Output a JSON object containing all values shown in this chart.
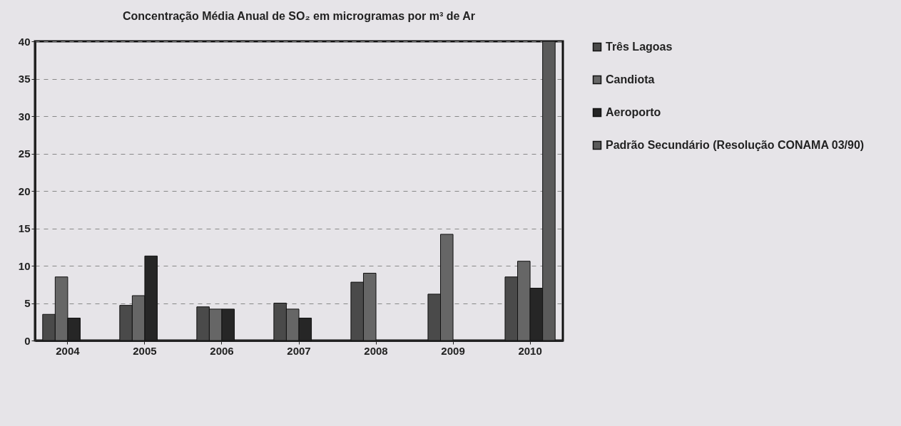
{
  "chart_data": {
    "type": "bar",
    "title": "Concentração Média Anual de SO₂ em microgramas por m³ de Ar",
    "categories": [
      "2004",
      "2005",
      "2006",
      "2007",
      "2008",
      "2009",
      "2010"
    ],
    "series": [
      {
        "name": "Três Lagoas",
        "color": "#4a4a4a",
        "values": [
          3.5,
          4.7,
          4.5,
          5,
          7.8,
          6.2,
          8.5
        ]
      },
      {
        "name": "Candiota",
        "color": "#666666",
        "values": [
          8.5,
          6,
          4.2,
          4.2,
          9,
          14.2,
          10.6
        ]
      },
      {
        "name": "Aeroporto",
        "color": "#262626",
        "values": [
          3,
          11.3,
          4.2,
          3,
          null,
          null,
          7
        ]
      },
      {
        "name": "Padrão Secundário (Resolução CONAMA 03/90)",
        "color": "#5a5a5a",
        "values": [
          null,
          null,
          null,
          null,
          null,
          null,
          40
        ]
      }
    ],
    "ylim": [
      0,
      40
    ],
    "yticks": [
      0,
      5,
      10,
      15,
      20,
      25,
      30,
      35,
      40
    ],
    "grid": "y",
    "legend": "right"
  }
}
